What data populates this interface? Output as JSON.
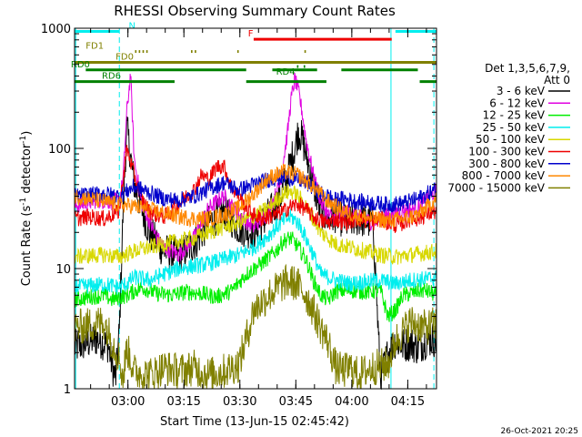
{
  "chart_data": {
    "type": "line",
    "title": "RHESSI Observing Summary Count Rates",
    "xlabel": "Start Time (13-Jun-15 02:45:42)",
    "ylabel_main": "Count Rate (s",
    "ylabel_sup": "-1",
    "ylabel_tail": " detector",
    "ylabel_close": ")",
    "footer": "26-Oct-2021 20:25",
    "y_scale": "log",
    "ylim": [
      1,
      1000
    ],
    "xlim_minutes": [
      0,
      97
    ],
    "x_ticks": [
      {
        "label": "03:00",
        "minute": 14.3
      },
      {
        "label": "03:15",
        "minute": 29.3
      },
      {
        "label": "03:30",
        "minute": 44.3
      },
      {
        "label": "03:45",
        "minute": 59.3
      },
      {
        "label": "04:00",
        "minute": 74.3
      },
      {
        "label": "04:15",
        "minute": 89.3
      }
    ],
    "y_ticks": [
      {
        "label": "1",
        "value": 1
      },
      {
        "label": "10",
        "value": 10
      },
      {
        "label": "100",
        "value": 100
      },
      {
        "label": "1000",
        "value": 1000
      }
    ],
    "legend_header_line1": "Det 1,3,5,6,7,9,",
    "legend_header_line2": "Att 0",
    "series": [
      {
        "name": "3 - 6 keV",
        "color": "#000000",
        "x": [
          0,
          3,
          6,
          9,
          10,
          11,
          12,
          13,
          14,
          16,
          18,
          20,
          24,
          28,
          32,
          36,
          40,
          44,
          48,
          52,
          55,
          57,
          59,
          60,
          61,
          62,
          64,
          66,
          68,
          70,
          73,
          76,
          80,
          82,
          84,
          86,
          88,
          90,
          92,
          94,
          96,
          97
        ],
        "y": [
          2.2,
          2.4,
          2.6,
          2.3,
          1.6,
          1.2,
          3,
          30,
          150,
          50,
          32,
          20,
          14,
          13,
          16,
          24,
          30,
          22,
          20,
          28,
          38,
          60,
          100,
          140,
          120,
          90,
          50,
          30,
          26,
          28,
          24,
          26,
          24,
          1.2,
          2.0,
          2.5,
          2.3,
          2.4,
          2.2,
          2.5,
          2.6,
          2.5
        ]
      },
      {
        "name": "6 - 12 keV",
        "color": "#e000e0",
        "x": [
          0,
          3,
          6,
          9,
          12,
          13,
          14,
          15,
          16,
          18,
          20,
          22,
          24,
          26,
          28,
          32,
          36,
          40,
          44,
          48,
          52,
          55,
          57,
          58,
          59,
          60,
          61,
          62,
          64,
          66,
          68,
          70,
          73,
          76,
          80,
          84,
          88,
          92,
          97
        ],
        "y": [
          33,
          35,
          37,
          36,
          37,
          55,
          200,
          420,
          80,
          35,
          25,
          18,
          15,
          14,
          13,
          18,
          32,
          40,
          28,
          22,
          30,
          50,
          130,
          250,
          380,
          300,
          200,
          120,
          60,
          36,
          28,
          26,
          30,
          27,
          24,
          28,
          30,
          32,
          45
        ]
      },
      {
        "name": "12 - 25 keV",
        "color": "#00ee00",
        "x": [
          0,
          4,
          8,
          10,
          12,
          14,
          16,
          18,
          22,
          26,
          30,
          34,
          38,
          42,
          46,
          50,
          54,
          56,
          58,
          60,
          62,
          64,
          66,
          68,
          70,
          74,
          78,
          82,
          84,
          86,
          88,
          90,
          92,
          94,
          97
        ],
        "y": [
          5.5,
          5.8,
          6.0,
          5.5,
          5.8,
          6,
          6.5,
          7,
          6.2,
          6.0,
          6.4,
          6.2,
          5.8,
          6.5,
          9,
          11,
          14,
          17,
          18,
          15,
          12,
          8,
          6,
          5.5,
          6.5,
          6.6,
          6.4,
          6.6,
          4,
          4.5,
          6,
          6.2,
          6.5,
          6.6,
          6.0
        ]
      },
      {
        "name": "25 - 50 keV",
        "color": "#00eeee",
        "x": [
          0,
          4,
          8,
          12,
          14,
          16,
          20,
          24,
          28,
          32,
          36,
          40,
          44,
          48,
          52,
          54,
          56,
          58,
          60,
          62,
          64,
          66,
          70,
          74,
          78,
          82,
          86,
          90,
          94,
          97
        ],
        "y": [
          7,
          7.2,
          7.4,
          7.0,
          7.5,
          8.5,
          8,
          9,
          10,
          10.5,
          11,
          12,
          13,
          15,
          19,
          22,
          25,
          27,
          24,
          18,
          13,
          9,
          8,
          7.5,
          7.8,
          8,
          7.5,
          8,
          8.2,
          8.4
        ]
      },
      {
        "name": "50 - 100 keV",
        "color": "#d8d800",
        "x": [
          0,
          4,
          8,
          12,
          16,
          20,
          24,
          28,
          32,
          36,
          40,
          44,
          48,
          52,
          54,
          56,
          58,
          60,
          62,
          64,
          66,
          70,
          74,
          78,
          82,
          86,
          90,
          94,
          97
        ],
        "y": [
          12.5,
          12.8,
          13,
          12.5,
          14,
          15,
          16,
          17,
          18,
          20,
          22,
          24,
          27,
          32,
          37,
          42,
          44,
          40,
          33,
          26,
          20,
          16,
          15,
          14,
          13,
          12.5,
          13,
          13.5,
          14
        ]
      },
      {
        "name": "100 - 300 keV",
        "color": "#ee0000",
        "x": [
          0,
          4,
          8,
          10,
          12,
          14,
          16,
          18,
          20,
          22,
          24,
          26,
          28,
          30,
          32,
          34,
          36,
          38,
          40,
          42,
          44,
          46,
          48,
          50,
          52,
          54,
          56,
          58,
          60,
          62,
          64,
          66,
          68,
          70,
          72,
          74,
          76,
          78,
          80,
          82,
          84,
          86,
          88,
          90,
          92,
          94,
          97
        ],
        "y": [
          26,
          27,
          26,
          28,
          30,
          100,
          60,
          38,
          30,
          28,
          27,
          30,
          34,
          40,
          45,
          60,
          55,
          70,
          72,
          48,
          40,
          32,
          28,
          26,
          27,
          28,
          30,
          33,
          34,
          31,
          27,
          25,
          24,
          26,
          24,
          25,
          26,
          25,
          24,
          26,
          24,
          23,
          24,
          26,
          26,
          28,
          30
        ]
      },
      {
        "name": "300 - 800 keV",
        "color": "#0000cc",
        "x": [
          0,
          4,
          8,
          12,
          14,
          16,
          20,
          24,
          28,
          32,
          36,
          40,
          44,
          48,
          52,
          56,
          58,
          60,
          62,
          64,
          66,
          68,
          70,
          72,
          76,
          80,
          84,
          88,
          92,
          97
        ],
        "y": [
          40,
          41,
          42,
          40,
          44,
          48,
          43,
          38,
          37,
          40,
          46,
          52,
          45,
          50,
          55,
          58,
          57,
          55,
          52,
          47,
          42,
          40,
          37,
          38,
          36,
          35,
          34,
          35,
          38,
          46
        ]
      },
      {
        "name": "800 - 7000 keV",
        "color": "#ff8800",
        "x": [
          0,
          4,
          8,
          12,
          16,
          20,
          24,
          28,
          32,
          36,
          40,
          44,
          48,
          52,
          56,
          60,
          64,
          68,
          72,
          76,
          80,
          84,
          88,
          92,
          97
        ],
        "y": [
          40,
          38,
          36,
          34,
          33,
          31,
          29,
          27,
          26,
          26,
          28,
          32,
          42,
          57,
          64,
          60,
          48,
          36,
          30,
          27,
          26,
          25,
          26,
          28,
          38
        ]
      },
      {
        "name": "7000 - 15000 keV",
        "color": "#808000",
        "x": [
          0,
          4,
          8,
          10,
          12,
          13,
          14,
          16,
          20,
          24,
          28,
          32,
          36,
          40,
          44,
          46,
          48,
          52,
          56,
          58,
          60,
          62,
          64,
          66,
          68,
          70,
          72,
          74,
          76,
          78,
          80,
          84,
          86,
          88,
          90,
          92,
          94,
          97
        ],
        "y": [
          3.2,
          3.4,
          3.6,
          2.5,
          1.8,
          1.2,
          2.2,
          1.4,
          1.3,
          1.5,
          1.4,
          1.5,
          1.3,
          1.4,
          1.6,
          2.6,
          4.5,
          6,
          7.5,
          7.8,
          7.2,
          6,
          4.5,
          3.2,
          2.4,
          1.5,
          1.4,
          1.5,
          1.3,
          1.4,
          1.5,
          1.6,
          2.5,
          3.0,
          3.6,
          3.4,
          3.2,
          3.5
        ]
      }
    ],
    "vertical_markers": [
      {
        "minute": 0.3,
        "color": "#00eeee",
        "style": "solid"
      },
      {
        "minute": 12.0,
        "color": "#00eeee",
        "style": "dashed"
      },
      {
        "minute": 84.8,
        "color": "#00eeee",
        "style": "solid"
      },
      {
        "minute": 96.3,
        "color": "#00eeee",
        "style": "dashed"
      }
    ],
    "flag_bars": [
      {
        "label": "N",
        "label_color": "#00eeee",
        "color": "#00eeee",
        "level": 940,
        "segments": [
          [
            0,
            12
          ]
        ],
        "label_minute": 14.5
      },
      {
        "label": "",
        "label_color": "#00eeee",
        "color": "#00eeee",
        "level": 940,
        "segments": [
          [
            86,
            97
          ]
        ],
        "label_minute": 86
      },
      {
        "label": "F",
        "label_color": "#ee0000",
        "color": "#ee0000",
        "level": 810,
        "segments": [
          [
            48,
            85
          ]
        ],
        "label_minute": 46.5
      },
      {
        "label": "FD1",
        "label_color": "#808000",
        "color": "#808000",
        "level": 640,
        "segments": [
          [
            16.2,
            16.6
          ],
          [
            17.2,
            17.6
          ],
          [
            18.2,
            18.6
          ],
          [
            19.2,
            19.6
          ],
          [
            31.2,
            31.6
          ],
          [
            32.2,
            32.6
          ],
          [
            43.6,
            44.0
          ],
          [
            61.6,
            62.0
          ]
        ],
        "label_minute": 3
      },
      {
        "label": "FD0",
        "label_color": "#808000",
        "color": "#808000",
        "level": 520,
        "segments": [
          [
            0,
            97
          ]
        ],
        "label_minute": 11
      },
      {
        "label": "RD0",
        "label_color": "#008000",
        "color": "#008000",
        "level": 450,
        "segments": [
          [
            3,
            46
          ],
          [
            53,
            65
          ],
          [
            71.5,
            92
          ]
        ],
        "label_minute": -1
      },
      {
        "label": "",
        "label_color": "#008000",
        "color": "#008000",
        "level": 480,
        "segments": [
          [
            59.6,
            60.0
          ],
          [
            61.4,
            61.8
          ]
        ],
        "label_minute": 59.6
      },
      {
        "label": "RD6",
        "label_color": "#008000",
        "color": "#008000",
        "level": 360,
        "segments": [
          [
            0,
            26.8
          ],
          [
            46,
            67.5
          ],
          [
            92.5,
            97
          ]
        ],
        "label_minute": 7.3
      },
      {
        "label": "RD4",
        "label_color": "#008000",
        "color": "#008000",
        "level": 390,
        "segments": [],
        "label_minute": 54
      }
    ]
  }
}
